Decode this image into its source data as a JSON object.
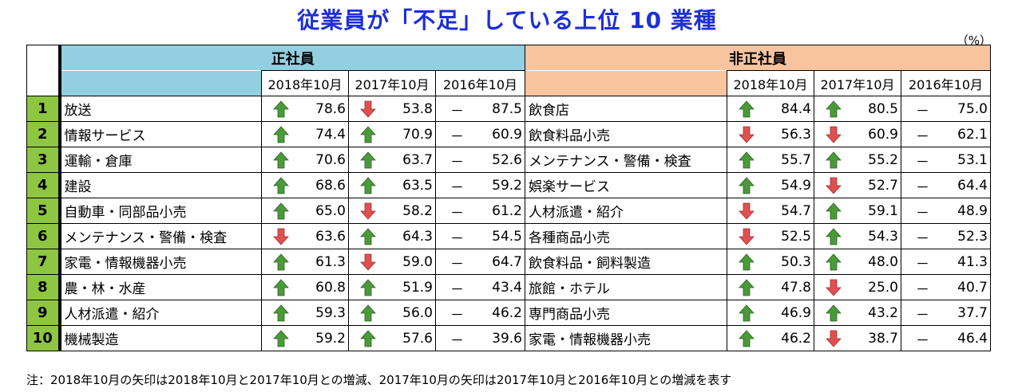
{
  "title": "従業員が「不足」している上位 10 業種",
  "unit": "（%）",
  "left_header": "正社員",
  "right_header": "非正社員",
  "years": [
    "2018年10月",
    "2017年10月",
    "2016年10月"
  ],
  "note": "注：2018年10月の矢印は2018年10月と2017年10月との増減、2017年10月の矢印は2017年10月と2016年10月との増減を表す",
  "colors": {
    "up": "#4a9a3a",
    "down": "#e05050"
  },
  "rows": [
    {
      "rank": "1",
      "lname": "放送",
      "l": [
        {
          "a": "up",
          "v": "78.6"
        },
        {
          "a": "down",
          "v": "53.8"
        },
        {
          "a": "dash",
          "v": "87.5"
        }
      ],
      "rname": "飲食店",
      "r": [
        {
          "a": "up",
          "v": "84.4"
        },
        {
          "a": "up",
          "v": "80.5"
        },
        {
          "a": "dash",
          "v": "75.0"
        }
      ]
    },
    {
      "rank": "2",
      "lname": "情報サービス",
      "l": [
        {
          "a": "up",
          "v": "74.4"
        },
        {
          "a": "up",
          "v": "70.9"
        },
        {
          "a": "dash",
          "v": "60.9"
        }
      ],
      "rname": "飲食料品小売",
      "r": [
        {
          "a": "down",
          "v": "56.3"
        },
        {
          "a": "down",
          "v": "60.9"
        },
        {
          "a": "dash",
          "v": "62.1"
        }
      ]
    },
    {
      "rank": "3",
      "lname": "運輸・倉庫",
      "l": [
        {
          "a": "up",
          "v": "70.6"
        },
        {
          "a": "up",
          "v": "63.7"
        },
        {
          "a": "dash",
          "v": "52.6"
        }
      ],
      "rname": "メンテナンス・警備・検査",
      "r": [
        {
          "a": "up",
          "v": "55.7"
        },
        {
          "a": "up",
          "v": "55.2"
        },
        {
          "a": "dash",
          "v": "53.1"
        }
      ]
    },
    {
      "rank": "4",
      "lname": "建設",
      "l": [
        {
          "a": "up",
          "v": "68.6"
        },
        {
          "a": "up",
          "v": "63.5"
        },
        {
          "a": "dash",
          "v": "59.2"
        }
      ],
      "rname": "娯楽サービス",
      "r": [
        {
          "a": "up",
          "v": "54.9"
        },
        {
          "a": "down",
          "v": "52.7"
        },
        {
          "a": "dash",
          "v": "64.4"
        }
      ]
    },
    {
      "rank": "5",
      "lname": "自動車・同部品小売",
      "l": [
        {
          "a": "up",
          "v": "65.0"
        },
        {
          "a": "down",
          "v": "58.2"
        },
        {
          "a": "dash",
          "v": "61.2"
        }
      ],
      "rname": "人材派遣・紹介",
      "r": [
        {
          "a": "down",
          "v": "54.7"
        },
        {
          "a": "up",
          "v": "59.1"
        },
        {
          "a": "dash",
          "v": "48.9"
        }
      ]
    },
    {
      "rank": "6",
      "lname": "メンテナンス・警備・検査",
      "l": [
        {
          "a": "down",
          "v": "63.6"
        },
        {
          "a": "up",
          "v": "64.3"
        },
        {
          "a": "dash",
          "v": "54.5"
        }
      ],
      "rname": "各種商品小売",
      "r": [
        {
          "a": "down",
          "v": "52.5"
        },
        {
          "a": "up",
          "v": "54.3"
        },
        {
          "a": "dash",
          "v": "52.3"
        }
      ]
    },
    {
      "rank": "7",
      "lname": "家電・情報機器小売",
      "l": [
        {
          "a": "up",
          "v": "61.3"
        },
        {
          "a": "down",
          "v": "59.0"
        },
        {
          "a": "dash",
          "v": "64.7"
        }
      ],
      "rname": "飲食料品・飼料製造",
      "r": [
        {
          "a": "up",
          "v": "50.3"
        },
        {
          "a": "up",
          "v": "48.0"
        },
        {
          "a": "dash",
          "v": "41.3"
        }
      ]
    },
    {
      "rank": "8",
      "lname": "農・林・水産",
      "l": [
        {
          "a": "up",
          "v": "60.8"
        },
        {
          "a": "up",
          "v": "51.9"
        },
        {
          "a": "dash",
          "v": "43.4"
        }
      ],
      "rname": "旅館・ホテル",
      "r": [
        {
          "a": "up",
          "v": "47.8"
        },
        {
          "a": "down",
          "v": "25.0"
        },
        {
          "a": "dash",
          "v": "40.7"
        }
      ]
    },
    {
      "rank": "9",
      "lname": "人材派遣・紹介",
      "l": [
        {
          "a": "up",
          "v": "59.3"
        },
        {
          "a": "up",
          "v": "56.0"
        },
        {
          "a": "dash",
          "v": "46.2"
        }
      ],
      "rname": "専門商品小売",
      "r": [
        {
          "a": "up",
          "v": "46.9"
        },
        {
          "a": "up",
          "v": "43.2"
        },
        {
          "a": "dash",
          "v": "37.7"
        }
      ]
    },
    {
      "rank": "10",
      "lname": "機械製造",
      "l": [
        {
          "a": "up",
          "v": "59.2"
        },
        {
          "a": "up",
          "v": "57.6"
        },
        {
          "a": "dash",
          "v": "39.6"
        }
      ],
      "rname": "家電・情報機器小売",
      "r": [
        {
          "a": "up",
          "v": "46.2"
        },
        {
          "a": "down",
          "v": "38.7"
        },
        {
          "a": "dash",
          "v": "46.4"
        }
      ]
    }
  ]
}
